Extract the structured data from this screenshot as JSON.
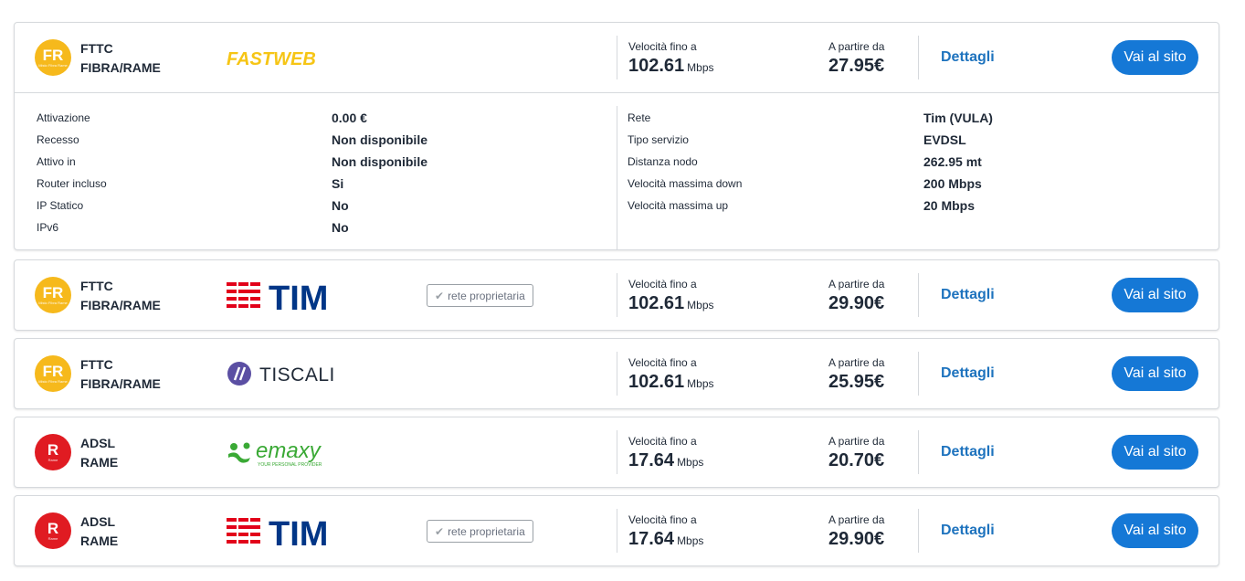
{
  "offers": [
    {
      "badge": {
        "abbr": "FR",
        "sub": "Misto Fibra Rame",
        "color": "#f6b91c"
      },
      "tech_line1": "FTTC",
      "tech_line2": "FIBRA/RAME",
      "logo": "fastweb-logo",
      "rete_proprietaria": "",
      "speed_label": "Velocità fino a",
      "speed_value": "102.61",
      "speed_unit": "Mbps",
      "price_label": "A partire da",
      "price_value": "27.95€",
      "details_link": "Dettagli",
      "cta": "Vai al sito",
      "details": {
        "left": [
          {
            "k": "Attivazione",
            "v": "0.00 €"
          },
          {
            "k": "Recesso",
            "v": "Non disponibile"
          },
          {
            "k": "Attivo in",
            "v": "Non disponibile"
          },
          {
            "k": "Router incluso",
            "v": "Si"
          },
          {
            "k": "IP Statico",
            "v": "No"
          },
          {
            "k": "IPv6",
            "v": "No"
          }
        ],
        "right": [
          {
            "k": "Rete",
            "v": "Tim (VULA)"
          },
          {
            "k": "Tipo servizio",
            "v": "EVDSL"
          },
          {
            "k": "Distanza nodo",
            "v": "262.95 mt"
          },
          {
            "k": "Velocità massima down",
            "v": "200 Mbps"
          },
          {
            "k": "Velocità massima up",
            "v": "20 Mbps"
          }
        ]
      }
    },
    {
      "badge": {
        "abbr": "FR",
        "sub": "Misto Fibra Rame",
        "color": "#f6b91c"
      },
      "tech_line1": "FTTC",
      "tech_line2": "FIBRA/RAME",
      "logo": "tim-logo",
      "rete_proprietaria": "rete proprietaria",
      "speed_label": "Velocità fino a",
      "speed_value": "102.61",
      "speed_unit": "Mbps",
      "price_label": "A partire da",
      "price_value": "29.90€",
      "details_link": "Dettagli",
      "cta": "Vai al sito"
    },
    {
      "badge": {
        "abbr": "FR",
        "sub": "Misto Fibra Rame",
        "color": "#f6b91c"
      },
      "tech_line1": "FTTC",
      "tech_line2": "FIBRA/RAME",
      "logo": "tiscali-logo",
      "rete_proprietaria": "",
      "speed_label": "Velocità fino a",
      "speed_value": "102.61",
      "speed_unit": "Mbps",
      "price_label": "A partire da",
      "price_value": "25.95€",
      "details_link": "Dettagli",
      "cta": "Vai al sito"
    },
    {
      "badge": {
        "abbr": "R",
        "sub": "Rame",
        "color": "#e01b22"
      },
      "tech_line1": "ADSL",
      "tech_line2": "RAME",
      "logo": "emaxy-logo",
      "rete_proprietaria": "",
      "speed_label": "Velocità fino a",
      "speed_value": "17.64",
      "speed_unit": "Mbps",
      "price_label": "A partire da",
      "price_value": "20.70€",
      "details_link": "Dettagli",
      "cta": "Vai al sito"
    },
    {
      "badge": {
        "abbr": "R",
        "sub": "Rame",
        "color": "#e01b22"
      },
      "tech_line1": "ADSL",
      "tech_line2": "RAME",
      "logo": "tim-logo",
      "rete_proprietaria": "rete proprietaria",
      "speed_label": "Velocità fino a",
      "speed_value": "17.64",
      "speed_unit": "Mbps",
      "price_label": "A partire da",
      "price_value": "29.90€",
      "details_link": "Dettagli",
      "cta": "Vai al sito"
    }
  ],
  "logos": {
    "fastweb": "FASTWEB",
    "tim": "TIM",
    "tiscali": "TISCALI",
    "emaxy": "emaxy",
    "emaxy_tagline": "YOUR PERSONAL PROVIDER"
  },
  "colors": {
    "accent": "#1578d6",
    "link": "#1e73be",
    "tim_red": "#e2001a",
    "tim_blue": "#003687",
    "fastweb_yellow": "#f6c515",
    "tiscali_purple": "#5b4fa3",
    "emaxy_green": "#3aa935"
  }
}
